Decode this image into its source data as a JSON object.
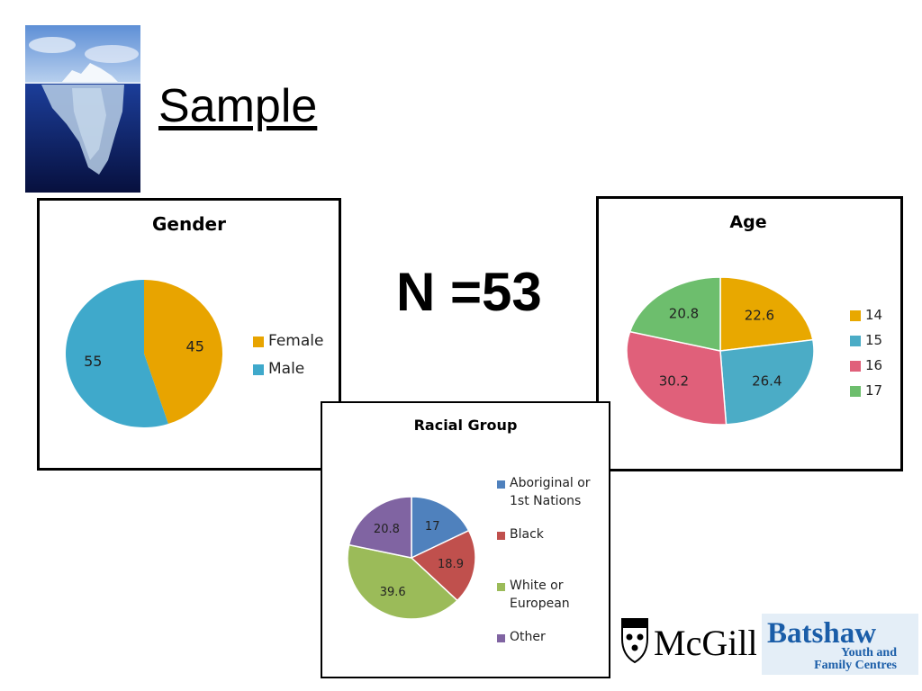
{
  "slide": {
    "title": "Sample",
    "n_label": "N =53"
  },
  "logos": {
    "mcgill": "McGill",
    "batshaw_line1": "Batshaw",
    "batshaw_line2": "Youth and",
    "batshaw_line3": "Family Centres"
  },
  "chart_data": [
    {
      "id": "gender",
      "type": "pie",
      "title": "Gender",
      "categories": [
        "Female",
        "Male"
      ],
      "values": [
        45,
        55
      ],
      "data_labels": [
        "45",
        "55"
      ],
      "colors": [
        "#E8A400",
        "#3FA9CB"
      ],
      "legend": "right"
    },
    {
      "id": "age",
      "type": "pie",
      "title": "Age",
      "categories": [
        "14",
        "15",
        "16",
        "17"
      ],
      "values": [
        22.6,
        26.4,
        30.2,
        20.8
      ],
      "data_labels": [
        "22.6",
        "26.4",
        "30.2",
        "20.8"
      ],
      "colors": [
        "#E8A800",
        "#4BACC6",
        "#E0607A",
        "#6DBE6D"
      ],
      "legend": "right"
    },
    {
      "id": "race",
      "type": "pie",
      "title": "Racial Group",
      "categories": [
        "Aboriginal or 1st Nations",
        "Black",
        "White or European",
        "Other"
      ],
      "legend_lines": [
        [
          "Aboriginal or",
          "1st Nations"
        ],
        [
          "Black"
        ],
        [
          "White or",
          "European"
        ],
        [
          "Other"
        ]
      ],
      "values": [
        17,
        18.9,
        39.6,
        20.8
      ],
      "data_labels": [
        "17",
        "18.9",
        "39.6",
        "20.8"
      ],
      "colors": [
        "#4F81BD",
        "#C0504D",
        "#9BBB59",
        "#8064A2"
      ],
      "legend": "right"
    }
  ]
}
